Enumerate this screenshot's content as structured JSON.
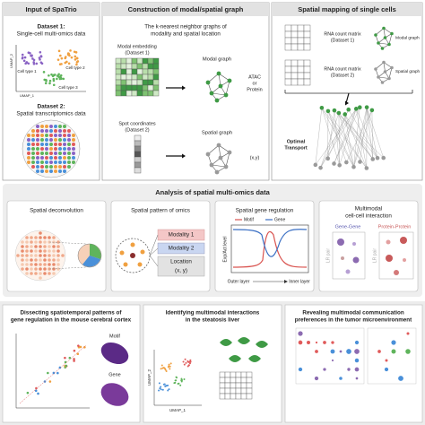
{
  "input": {
    "title": "Input of SpaTrio",
    "dataset1_label": "Dataset 1:",
    "dataset1_desc": "Single-cell multi-omics data",
    "cell_types": [
      "Cell type 1",
      "Cell type 2",
      "Cell type 3"
    ],
    "umap_x": "UMAP_1",
    "umap_y": "UMAP_2",
    "dataset2_label": "Dataset 2:",
    "dataset2_desc": "Spatial transcriptomics data"
  },
  "construction": {
    "title": "Construction of modal/spatial graph",
    "subtitle_lines": [
      "The k-nearest neighbor graphs of",
      "modality and spatial location"
    ],
    "modal_embedding": [
      "Modal embedding",
      "(Dataset 1)"
    ],
    "modal_graph": "Modal graph",
    "atac_or_protein": [
      "ATAC",
      "or",
      "Protein"
    ],
    "spot_coordinates": [
      "Spot coordinates",
      "(Dataset 2)"
    ],
    "spatial_graph": "Spatial graph",
    "xy": "(x,y)"
  },
  "mapping": {
    "title": "Spatial mapping of single cells",
    "rna1": [
      "RNA count matrix",
      "(Dataset 1)"
    ],
    "modal_graph": "Modal graph",
    "rna2": [
      "RNA count matrix",
      "(Dataset 2)"
    ],
    "spatial_graph": "Spatial graph",
    "ot": [
      "Optimal",
      "Transport"
    ]
  },
  "analysis": {
    "title": "Analysis of spatial multi-omics data",
    "deconvolution": "Spatial deconvolution",
    "pattern": {
      "title": "Spatial pattern of omics",
      "modality1": "Modality 1",
      "modality2": "Modality 2",
      "location": "Location",
      "xy": "(x, y)"
    },
    "regulation": {
      "title": "Spatial gene regulation",
      "legend": [
        "Motif",
        "Gene"
      ],
      "y_label": "Exp/Act level",
      "outer": "Outer layer",
      "inner": "Inner layer"
    },
    "interaction": {
      "title_lines": [
        "Multimodal",
        "cell-cell interaction"
      ],
      "gene_gene": "Gene-Gene",
      "protein_protein": "Protein-Protein",
      "lr_pair": "LR pair"
    }
  },
  "applications": [
    {
      "title_lines": [
        "Dissecting spatiotemporal patterns of",
        "gene regulation in the mouse cerebral cortex"
      ],
      "labels": [
        "Motif",
        "Gene"
      ]
    },
    {
      "title_lines": [
        "Identifying multimodal interactions",
        "in the steatosis liver"
      ],
      "labels": [
        "UMAP_1",
        "UMAP_2"
      ]
    },
    {
      "title_lines": [
        "Revealing multimodal communication",
        "preferences in the tumor microenvironment"
      ],
      "labels": []
    }
  ]
}
